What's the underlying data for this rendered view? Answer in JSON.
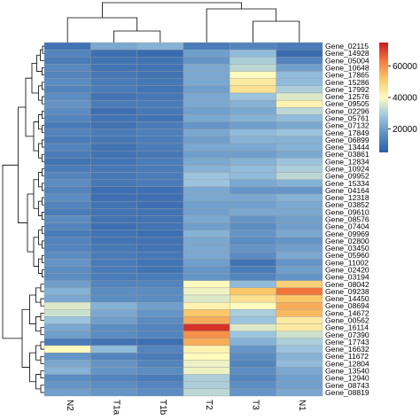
{
  "chart_data": {
    "type": "heatmap",
    "columns": [
      "N2",
      "T1a",
      "T1b",
      "T2",
      "T3",
      "N1"
    ],
    "rows": [
      "Gene_02115",
      "Gene_14928",
      "Gene_05004",
      "Gene_10648",
      "Gene_17865",
      "Gene_15286",
      "Gene_17992",
      "Gene_12576",
      "Gene_09505",
      "Gene_02296",
      "Gene_05761",
      "Gene_07132",
      "Gene_17849",
      "Gene_06899",
      "Gene_13444",
      "Gene_03861",
      "Gene_12834",
      "Gene_10924",
      "Gene_09952",
      "Gene_15334",
      "Gene_04164",
      "Gene_12318",
      "Gene_03852",
      "Gene_09610",
      "Gene_08576",
      "Gene_07404",
      "Gene_09969",
      "Gene_02800",
      "Gene_03450",
      "Gene_05960",
      "Gene_11002",
      "Gene_02420",
      "Gene_03194",
      "Gene_08042",
      "Gene_09238",
      "Gene_14450",
      "Gene_08694",
      "Gene_14672",
      "Gene_00562",
      "Gene_16114",
      "Gene_07390",
      "Gene_17743",
      "Gene_16632",
      "Gene_11672",
      "Gene_12804",
      "Gene_13540",
      "Gene_12940",
      "Gene_08743",
      "Gene_08819"
    ],
    "values": [
      [
        10000,
        22000,
        24000,
        12000,
        14000,
        12000
      ],
      [
        14000,
        9000,
        8000,
        20000,
        26000,
        8000
      ],
      [
        12000,
        10000,
        10000,
        18000,
        30000,
        14000
      ],
      [
        15000,
        10000,
        10000,
        22000,
        32000,
        20000
      ],
      [
        14000,
        11000,
        10000,
        22000,
        40000,
        26000
      ],
      [
        16000,
        12000,
        11000,
        22000,
        44000,
        26000
      ],
      [
        14000,
        12000,
        10000,
        20000,
        46000,
        30000
      ],
      [
        16000,
        10000,
        11000,
        22000,
        28000,
        36000
      ],
      [
        18000,
        12000,
        12000,
        22000,
        24000,
        42000
      ],
      [
        16000,
        9000,
        11000,
        20000,
        22000,
        32000
      ],
      [
        14000,
        10000,
        10000,
        22000,
        24000,
        26000
      ],
      [
        12000,
        10000,
        12000,
        18000,
        20000,
        22000
      ],
      [
        14000,
        12000,
        13000,
        22000,
        26000,
        28000
      ],
      [
        12000,
        11000,
        12000,
        20000,
        24000,
        24000
      ],
      [
        14000,
        10000,
        12000,
        22000,
        22000,
        24000
      ],
      [
        12000,
        10000,
        11000,
        20000,
        20000,
        22000
      ],
      [
        10000,
        10000,
        12000,
        22000,
        24000,
        28000
      ],
      [
        12000,
        11000,
        12000,
        24000,
        26000,
        30000
      ],
      [
        14000,
        11000,
        12000,
        28000,
        26000,
        32000
      ],
      [
        16000,
        11000,
        12000,
        28000,
        22000,
        24000
      ],
      [
        14000,
        9000,
        9000,
        22000,
        18000,
        18000
      ],
      [
        16000,
        9000,
        9000,
        22000,
        22000,
        24000
      ],
      [
        14000,
        10000,
        9000,
        20000,
        20000,
        22000
      ],
      [
        12000,
        10000,
        10000,
        20000,
        22000,
        22000
      ],
      [
        16000,
        10000,
        10000,
        22000,
        18000,
        20000
      ],
      [
        14000,
        9000,
        10000,
        20000,
        16000,
        20000
      ],
      [
        12000,
        10000,
        9000,
        24000,
        18000,
        22000
      ],
      [
        14000,
        10000,
        10000,
        22000,
        16000,
        18000
      ],
      [
        14000,
        11000,
        10000,
        22000,
        18000,
        20000
      ],
      [
        16000,
        12000,
        11000,
        22000,
        16000,
        22000
      ],
      [
        18000,
        12000,
        10000,
        20000,
        10000,
        18000
      ],
      [
        16000,
        12000,
        10000,
        18000,
        12000,
        20000
      ],
      [
        16000,
        12000,
        12000,
        18000,
        14000,
        18000
      ],
      [
        20000,
        14000,
        14000,
        40000,
        26000,
        50000
      ],
      [
        24000,
        16000,
        16000,
        38000,
        52000,
        64000
      ],
      [
        22000,
        16000,
        16000,
        36000,
        46000,
        52000
      ],
      [
        36000,
        24000,
        20000,
        42000,
        40000,
        56000
      ],
      [
        34000,
        22000,
        18000,
        52000,
        30000,
        54000
      ],
      [
        28000,
        20000,
        16000,
        56000,
        28000,
        44000
      ],
      [
        22000,
        16000,
        14000,
        72000,
        36000,
        44000
      ],
      [
        20000,
        16000,
        14000,
        60000,
        28000,
        34000
      ],
      [
        12000,
        10000,
        9000,
        56000,
        24000,
        30000
      ],
      [
        40000,
        26000,
        14000,
        42000,
        18000,
        28000
      ],
      [
        18000,
        14000,
        12000,
        40000,
        16000,
        24000
      ],
      [
        22000,
        18000,
        14000,
        38000,
        14000,
        26000
      ],
      [
        24000,
        18000,
        16000,
        38000,
        16000,
        22000
      ],
      [
        16000,
        14000,
        12000,
        30000,
        14000,
        20000
      ],
      [
        18000,
        16000,
        14000,
        30000,
        16000,
        20000
      ],
      [
        20000,
        18000,
        16000,
        32000,
        18000,
        22000
      ]
    ],
    "colorbar": {
      "min": 5000,
      "max": 75000,
      "ticks": [
        20000,
        40000,
        60000
      ],
      "colors": [
        "#2d5fa8",
        "#5e8fc4",
        "#9ec6df",
        "#fdfbbd",
        "#fbc96a",
        "#f37a3c",
        "#c91a1e"
      ]
    },
    "legend": "right",
    "row_dendrogram": "left",
    "column_dendrogram": "top",
    "grid": false
  }
}
